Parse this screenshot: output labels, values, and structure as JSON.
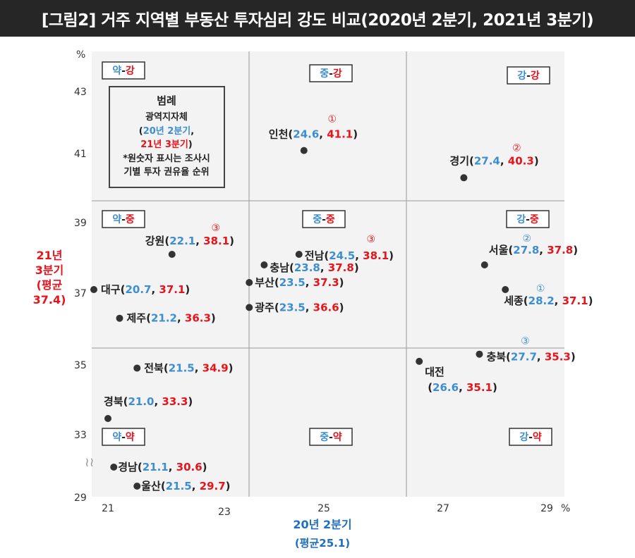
{
  "title": "[그림2] 거주 지역별 부동산 투자심리 강도 비교(2020년 2분기, 2021년 3분기)",
  "chart_data": {
    "type": "scatter",
    "xlabel": "20년 2분기",
    "xlabel_sub": "(평균25.1)",
    "ylabel": "21년\n3분기\n(평균\n37.4)",
    "x_unit": "%",
    "y_unit": "%",
    "x_ticks": [
      "21",
      "23",
      "25",
      "27",
      "29"
    ],
    "y_ticks": [
      "29",
      "33",
      "35",
      "37",
      "39",
      "41",
      "43"
    ],
    "axis_break_symbol": "≀≀",
    "points": [
      {
        "name": "인천",
        "x": 24.6,
        "y": 41.1,
        "rank": "①",
        "rank_color": "red"
      },
      {
        "name": "경기",
        "x": 27.4,
        "y": 40.3,
        "rank": "②",
        "rank_color": "red"
      },
      {
        "name": "강원",
        "x": 22.1,
        "y": 38.1,
        "rank": "③",
        "rank_color": "red"
      },
      {
        "name": "전남",
        "x": 24.5,
        "y": 38.1,
        "rank": "③",
        "rank_color": "red"
      },
      {
        "name": "충남",
        "x": 23.8,
        "y": 37.8
      },
      {
        "name": "부산",
        "x": 23.5,
        "y": 37.3
      },
      {
        "name": "광주",
        "x": 23.5,
        "y": 36.6
      },
      {
        "name": "대구",
        "x": 20.7,
        "y": 37.1
      },
      {
        "name": "제주",
        "x": 21.2,
        "y": 36.3
      },
      {
        "name": "서울",
        "x": 27.8,
        "y": 37.8,
        "rank": "②",
        "rank_color": "blue"
      },
      {
        "name": "세종",
        "x": 28.2,
        "y": 37.1,
        "rank": "①",
        "rank_color": "blue"
      },
      {
        "name": "충북",
        "x": 27.7,
        "y": 35.3,
        "rank": "③",
        "rank_color": "blue"
      },
      {
        "name": "대전",
        "x": 26.6,
        "y": 35.1
      },
      {
        "name": "전북",
        "x": 21.5,
        "y": 34.9
      },
      {
        "name": "경북",
        "x": 21.0,
        "y": 33.3
      },
      {
        "name": "경남",
        "x": 21.1,
        "y": 30.6
      },
      {
        "name": "울산",
        "x": 21.5,
        "y": 29.7
      }
    ],
    "quadrant_labels": [
      {
        "left": "약",
        "right": "강"
      },
      {
        "left": "중",
        "right": "강"
      },
      {
        "left": "강",
        "right": "강"
      },
      {
        "left": "약",
        "right": "중"
      },
      {
        "left": "중",
        "right": "중"
      },
      {
        "left": "강",
        "right": "중"
      },
      {
        "left": "약",
        "right": "약"
      },
      {
        "left": "중",
        "right": "약"
      },
      {
        "left": "강",
        "right": "약"
      }
    ],
    "legend": {
      "title": "범례",
      "line1": "광역지자체",
      "line2_open": "(",
      "line2": "20년 2분기",
      "line2_sep": ",",
      "line3": "21년 3분기",
      "line3_close": ")",
      "line4": "*원숫자 표시는 조사시",
      "line5": "기별 투자 권유율 순위"
    },
    "colors": {
      "blue": "#3d8ed0",
      "red": "#e8141b",
      "dark": "#333333",
      "grid": "#aaaaaa",
      "plot_bg": "#f3f3f3"
    }
  }
}
